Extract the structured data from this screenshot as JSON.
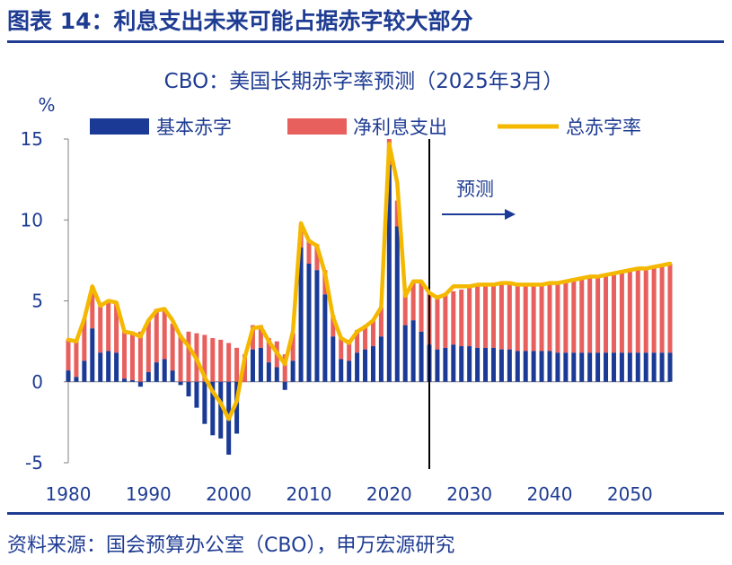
{
  "figure_title": "图表 14：利息支出未来可能占据赤字较大部分",
  "source": "资料来源：国会预算办公室（CBO），申万宏源研究",
  "colors": {
    "primary": "#1a3a96",
    "net_interest": "#e8605d",
    "total": "#f5b800",
    "text": "#1f3c93"
  },
  "chart_data": {
    "type": "bar+line",
    "title": "CBO：美国长期赤字率预测（2025年3月）",
    "ylabel": "%",
    "xlabel": "",
    "ylim": [
      -5,
      15
    ],
    "xlim": [
      1980,
      2055
    ],
    "yticks": [
      -5,
      0,
      5,
      10,
      15
    ],
    "xticks": [
      1980,
      1990,
      2000,
      2010,
      2020,
      2030,
      2040,
      2050
    ],
    "legend_position": "top",
    "forecast_start": 2025,
    "forecast_label": "预测",
    "x": [
      1980,
      1981,
      1982,
      1983,
      1984,
      1985,
      1986,
      1987,
      1988,
      1989,
      1990,
      1991,
      1992,
      1993,
      1994,
      1995,
      1996,
      1997,
      1998,
      1999,
      2000,
      2001,
      2002,
      2003,
      2004,
      2005,
      2006,
      2007,
      2008,
      2009,
      2010,
      2011,
      2012,
      2013,
      2014,
      2015,
      2016,
      2017,
      2018,
      2019,
      2020,
      2021,
      2022,
      2023,
      2024,
      2025,
      2026,
      2027,
      2028,
      2029,
      2030,
      2031,
      2032,
      2033,
      2034,
      2035,
      2036,
      2037,
      2038,
      2039,
      2040,
      2041,
      2042,
      2043,
      2044,
      2045,
      2046,
      2047,
      2048,
      2049,
      2050,
      2051,
      2052,
      2053,
      2054,
      2055
    ],
    "series": [
      {
        "name": "基本赤字",
        "type": "bar",
        "values": [
          0.7,
          0.3,
          1.3,
          3.3,
          1.8,
          1.9,
          1.8,
          0.2,
          0.1,
          -0.3,
          0.6,
          1.2,
          1.4,
          0.7,
          -0.2,
          -0.9,
          -1.6,
          -2.6,
          -3.3,
          -3.5,
          -4.5,
          -3.2,
          0.0,
          2.0,
          2.1,
          1.2,
          0.9,
          -0.5,
          1.3,
          8.3,
          7.3,
          6.9,
          5.4,
          2.8,
          1.4,
          1.3,
          1.8,
          2.0,
          2.2,
          2.8,
          13.4,
          9.6,
          3.5,
          3.8,
          3.1,
          2.3,
          2.0,
          2.1,
          2.3,
          2.2,
          2.2,
          2.1,
          2.1,
          2.1,
          2.0,
          2.0,
          1.9,
          1.9,
          1.9,
          1.9,
          1.9,
          1.8,
          1.8,
          1.8,
          1.8,
          1.8,
          1.8,
          1.8,
          1.8,
          1.8,
          1.8,
          1.8,
          1.8,
          1.8,
          1.8,
          1.8
        ]
      },
      {
        "name": "净利息支出",
        "type": "bar",
        "values": [
          1.9,
          2.2,
          2.6,
          2.6,
          2.9,
          3.1,
          3.1,
          3.0,
          3.0,
          3.1,
          3.2,
          3.3,
          3.1,
          2.9,
          2.9,
          3.1,
          3.0,
          2.9,
          2.7,
          2.6,
          2.4,
          2.1,
          1.7,
          1.5,
          1.4,
          1.5,
          1.6,
          1.7,
          1.7,
          1.4,
          1.5,
          1.6,
          1.5,
          1.3,
          1.3,
          1.3,
          1.4,
          1.5,
          1.6,
          1.8,
          1.6,
          1.6,
          1.9,
          2.4,
          3.1,
          3.2,
          3.3,
          3.3,
          3.3,
          3.5,
          3.6,
          3.8,
          3.9,
          4.0,
          4.1,
          4.1,
          4.1,
          4.2,
          4.2,
          4.2,
          4.2,
          4.3,
          4.4,
          4.5,
          4.6,
          4.7,
          4.8,
          4.9,
          5.0,
          5.1,
          5.2,
          5.3,
          5.3,
          5.4,
          5.4,
          5.5
        ]
      },
      {
        "name": "总赤字率",
        "type": "line",
        "values": [
          2.6,
          2.5,
          3.9,
          5.9,
          4.7,
          5.0,
          4.9,
          3.1,
          3.0,
          2.8,
          3.8,
          4.4,
          4.5,
          3.8,
          2.8,
          2.2,
          1.4,
          0.3,
          -0.6,
          -1.3,
          -2.3,
          -1.2,
          1.5,
          3.3,
          3.4,
          2.5,
          1.8,
          1.1,
          3.1,
          9.8,
          8.7,
          8.4,
          6.7,
          4.0,
          2.7,
          2.4,
          3.1,
          3.4,
          3.8,
          4.6,
          14.7,
          12.3,
          5.3,
          6.2,
          6.2,
          5.5,
          5.2,
          5.4,
          5.9,
          5.9,
          5.9,
          6.0,
          6.0,
          6.0,
          6.1,
          6.1,
          6.0,
          6.0,
          6.0,
          6.0,
          6.1,
          6.1,
          6.2,
          6.3,
          6.4,
          6.5,
          6.5,
          6.6,
          6.7,
          6.8,
          6.9,
          7.0,
          7.0,
          7.1,
          7.2,
          7.3
        ]
      }
    ]
  }
}
